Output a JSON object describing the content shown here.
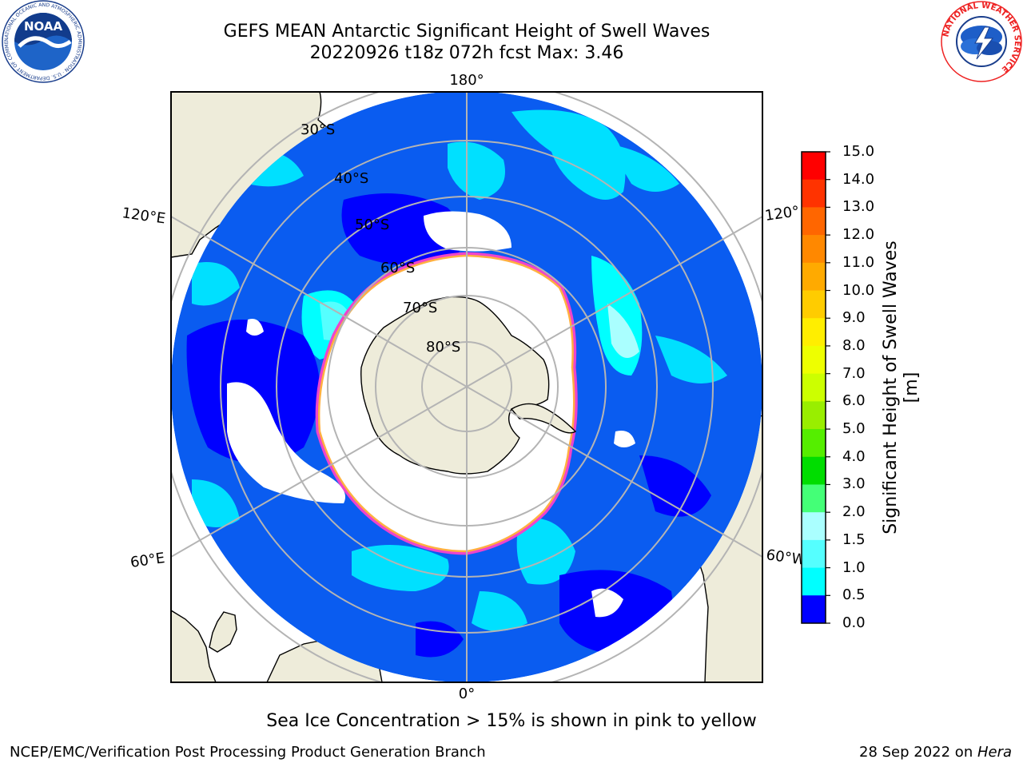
{
  "title": {
    "line1": "GEFS MEAN Antarctic Significant Height of Swell Waves",
    "line2": "20220926 t18z 072h fcst   Max: 3.46"
  },
  "map": {
    "projection": "south polar stereographic",
    "longitude_labels": {
      "top": "180°",
      "bottom": "0°",
      "upper_left": "120°E",
      "upper_right": "120°",
      "lower_left": "60°E",
      "lower_right": "60°W"
    },
    "latitude_labels": [
      "30°S",
      "40°S",
      "50°S",
      "60°S",
      "70°S",
      "80°S"
    ],
    "colors": {
      "land": "#eeecda",
      "ice_shelf": "#ffffff",
      "grid": "#b4b4b4",
      "ice_edge": "#ee44cc",
      "ice_inner": "#ffb040",
      "ocean_bg": "#0a5cf0"
    }
  },
  "colorbar": {
    "label": "Significant Height of Swell Waves [m]",
    "ticks": [
      "15.0",
      "14.0",
      "13.0",
      "12.0",
      "11.0",
      "10.0",
      "9.0",
      "8.0",
      "7.0",
      "6.0",
      "5.0",
      "4.0",
      "3.0",
      "2.0",
      "1.5",
      "1.0",
      "0.5",
      "0.0"
    ],
    "colors": [
      "#ff0000",
      "#ff3300",
      "#ff6600",
      "#ff8800",
      "#ffaa00",
      "#ffcc00",
      "#ffee00",
      "#eeff00",
      "#ccff00",
      "#99ee00",
      "#55ee00",
      "#00dd00",
      "#44ff77",
      "#aaffff",
      "#55ffff",
      "#00ffff",
      "#0088ff",
      "#0000ff"
    ]
  },
  "note": "Sea Ice Concentration > 15% is shown in pink to yellow",
  "footer": {
    "left": "NCEP/EMC/Verification Post Processing Product Generation Branch",
    "right_date": "28 Sep 2022 on ",
    "right_host": "Hera"
  },
  "logos": {
    "noaa": {
      "text": "NOAA",
      "ring_text": "NATIONAL OCEANIC AND ATMOSPHERIC ADMINISTRATION · U.S. DEPARTMENT OF COMMERCE"
    },
    "nws": {
      "ring_text": "NATIONAL WEATHER SERVICE"
    }
  }
}
